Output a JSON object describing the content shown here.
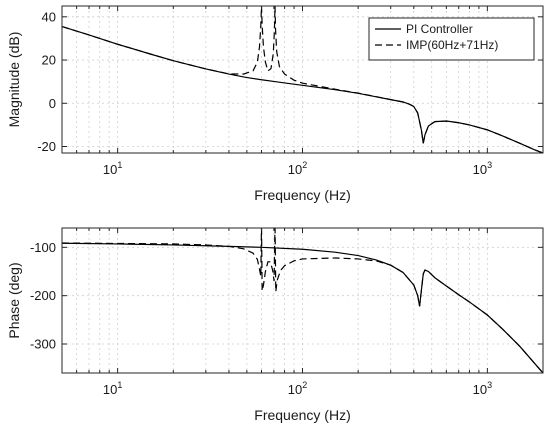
{
  "chart_data": [
    {
      "type": "line",
      "xscale": "log",
      "xlim": [
        5,
        2000
      ],
      "ylim": [
        -23,
        45
      ],
      "xlabel": "Frequency (Hz)",
      "ylabel": "Magnitude (dB)",
      "xticks": [
        {
          "value": 10,
          "base": "10",
          "exp": "1"
        },
        {
          "value": 100,
          "base": "10",
          "exp": "2"
        },
        {
          "value": 1000,
          "base": "10",
          "exp": "3"
        }
      ],
      "yticks": [
        {
          "value": -20,
          "label": "-20"
        },
        {
          "value": 0,
          "label": "0"
        },
        {
          "value": 20,
          "label": "20"
        },
        {
          "value": 40,
          "label": "40"
        }
      ],
      "grid": true,
      "legend": {
        "position": "top-right"
      },
      "series": [
        {
          "name": "PI Controller",
          "style": "solid",
          "points": [
            [
              5,
              35.5
            ],
            [
              7,
              31.6
            ],
            [
              10,
              27.3
            ],
            [
              15,
              22.8
            ],
            [
              20,
              19.7
            ],
            [
              30,
              15.9
            ],
            [
              40,
              13.5
            ],
            [
              50,
              11.9
            ],
            [
              60,
              10.9
            ],
            [
              70,
              10.1
            ],
            [
              80,
              9.4
            ],
            [
              100,
              8.3
            ],
            [
              150,
              6.3
            ],
            [
              200,
              4.6
            ],
            [
              300,
              1.7
            ],
            [
              350,
              0.6
            ],
            [
              380,
              -0.5
            ],
            [
              400,
              -1.5
            ],
            [
              420,
              -4.5
            ],
            [
              440,
              -12.5
            ],
            [
              450,
              -18.5
            ],
            [
              460,
              -14.5
            ],
            [
              480,
              -10.5
            ],
            [
              520,
              -8.5
            ],
            [
              600,
              -8.2
            ],
            [
              700,
              -9
            ],
            [
              800,
              -10
            ],
            [
              1000,
              -12.3
            ],
            [
              1200,
              -15
            ],
            [
              1500,
              -18.5
            ],
            [
              1800,
              -21.5
            ],
            [
              2000,
              -23
            ]
          ]
        },
        {
          "name": "IMP(60Hz+71Hz)",
          "style": "dashed",
          "points": [
            [
              5,
              35.5
            ],
            [
              7,
              31.6
            ],
            [
              10,
              27.3
            ],
            [
              15,
              22.8
            ],
            [
              20,
              19.7
            ],
            [
              30,
              15.9
            ],
            [
              40,
              13.6
            ],
            [
              48,
              13.5
            ],
            [
              54,
              15
            ],
            [
              57,
              19
            ],
            [
              58.5,
              26
            ],
            [
              59.5,
              36
            ],
            [
              60,
              45
            ],
            [
              60.5,
              36
            ],
            [
              61.5,
              26
            ],
            [
              63,
              19
            ],
            [
              65,
              15
            ],
            [
              67.5,
              16
            ],
            [
              69.5,
              23
            ],
            [
              70.5,
              34
            ],
            [
              71,
              45
            ],
            [
              71.5,
              34
            ],
            [
              72.5,
              24
            ],
            [
              75,
              17
            ],
            [
              80,
              13.5
            ],
            [
              90,
              10.7
            ],
            [
              100,
              9.3
            ],
            [
              150,
              6.5
            ],
            [
              200,
              4.7
            ],
            [
              300,
              1.7
            ],
            [
              350,
              0.6
            ],
            [
              380,
              -0.5
            ],
            [
              400,
              -1.5
            ],
            [
              420,
              -4.5
            ],
            [
              440,
              -12.5
            ],
            [
              450,
              -18.5
            ],
            [
              460,
              -14.5
            ],
            [
              480,
              -10.5
            ],
            [
              520,
              -8.5
            ],
            [
              600,
              -8.2
            ],
            [
              700,
              -9
            ],
            [
              800,
              -10
            ],
            [
              1000,
              -12.3
            ],
            [
              1200,
              -15
            ],
            [
              1500,
              -18.5
            ],
            [
              1800,
              -21.5
            ],
            [
              2000,
              -23
            ]
          ]
        }
      ]
    },
    {
      "type": "line",
      "xscale": "log",
      "xlim": [
        5,
        2000
      ],
      "ylim": [
        -360,
        -60
      ],
      "xlabel": "Frequency (Hz)",
      "ylabel": "Phase (deg)",
      "xticks": [
        {
          "value": 10,
          "base": "10",
          "exp": "1"
        },
        {
          "value": 100,
          "base": "10",
          "exp": "2"
        },
        {
          "value": 1000,
          "base": "10",
          "exp": "3"
        }
      ],
      "yticks": [
        {
          "value": -300,
          "label": "-300"
        },
        {
          "value": -200,
          "label": "-200"
        },
        {
          "value": -100,
          "label": "-100"
        }
      ],
      "grid": true,
      "series": [
        {
          "name": "PI Controller",
          "style": "solid",
          "points": [
            [
              5,
              -91.5
            ],
            [
              10,
              -93
            ],
            [
              20,
              -95
            ],
            [
              40,
              -98
            ],
            [
              60,
              -100
            ],
            [
              100,
              -104
            ],
            [
              150,
              -110
            ],
            [
              200,
              -117
            ],
            [
              250,
              -126
            ],
            [
              300,
              -137
            ],
            [
              350,
              -152
            ],
            [
              400,
              -178
            ],
            [
              420,
              -200
            ],
            [
              430,
              -222
            ],
            [
              440,
              -188
            ],
            [
              450,
              -155
            ],
            [
              460,
              -147
            ],
            [
              480,
              -150
            ],
            [
              520,
              -163
            ],
            [
              600,
              -180
            ],
            [
              700,
              -198
            ],
            [
              800,
              -213
            ],
            [
              1000,
              -240
            ],
            [
              1200,
              -268
            ],
            [
              1500,
              -305
            ],
            [
              1800,
              -340
            ],
            [
              2000,
              -360
            ]
          ]
        },
        {
          "name": "IMP(60Hz+71Hz)",
          "style": "dashed",
          "points": [
            [
              5,
              -91
            ],
            [
              10,
              -92
            ],
            [
              20,
              -93
            ],
            [
              30,
              -95
            ],
            [
              40,
              -98
            ],
            [
              48,
              -103
            ],
            [
              54,
              -112
            ],
            [
              57,
              -125
            ],
            [
              58.5,
              -145
            ],
            [
              59.5,
              -160
            ],
            [
              60,
              -50
            ],
            [
              60.5,
              -190
            ],
            [
              61.5,
              -178
            ],
            [
              63,
              -150
            ],
            [
              65,
              -130
            ],
            [
              67,
              -130
            ],
            [
              69,
              -148
            ],
            [
              70.2,
              -170
            ],
            [
              71,
              -50
            ],
            [
              71.7,
              -192
            ],
            [
              73,
              -168
            ],
            [
              76,
              -148
            ],
            [
              80,
              -138
            ],
            [
              90,
              -128
            ],
            [
              100,
              -124
            ],
            [
              150,
              -122
            ],
            [
              200,
              -124
            ],
            [
              250,
              -128
            ],
            [
              300,
              -137
            ],
            [
              350,
              -152
            ],
            [
              400,
              -178
            ],
            [
              420,
              -200
            ],
            [
              430,
              -222
            ],
            [
              440,
              -188
            ],
            [
              450,
              -155
            ],
            [
              460,
              -147
            ],
            [
              480,
              -150
            ],
            [
              520,
              -163
            ],
            [
              600,
              -180
            ],
            [
              700,
              -198
            ],
            [
              800,
              -213
            ],
            [
              1000,
              -240
            ],
            [
              1200,
              -268
            ],
            [
              1500,
              -305
            ],
            [
              1800,
              -340
            ],
            [
              2000,
              -360
            ]
          ]
        }
      ]
    }
  ]
}
